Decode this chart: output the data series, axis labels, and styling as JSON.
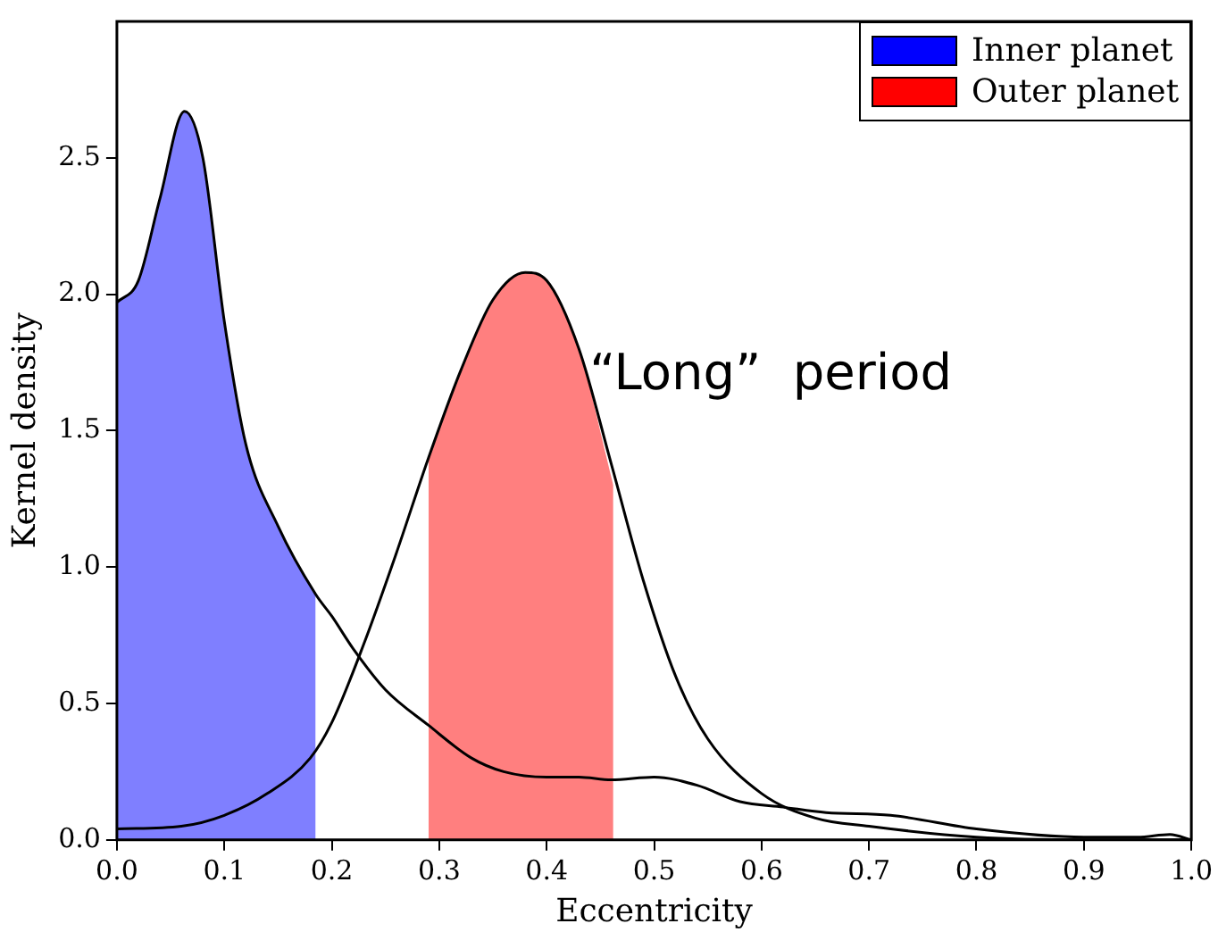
{
  "chart_data": {
    "type": "line",
    "xlabel": "Eccentricity",
    "ylabel": "Kernel density",
    "xlim": [
      0,
      1
    ],
    "ylim": [
      0,
      3
    ],
    "xticks": [
      {
        "value": 0,
        "label": "0.0"
      },
      0.1,
      0.2,
      0.3,
      0.4,
      0.5,
      0.6,
      0.7,
      0.8,
      0.9,
      {
        "value": 1,
        "label": "1.0"
      }
    ],
    "yticks": [
      {
        "value": 0,
        "label": "0.0"
      },
      0.5,
      {
        "value": 1,
        "label": "1.0"
      },
      1.5,
      {
        "value": 2,
        "label": "2.0"
      },
      2.5
    ],
    "grid": false,
    "legend": "top right",
    "marker": "none",
    "annotations": [
      {
        "text": "“Long”  period",
        "x": 0.44,
        "y": 1.7
      }
    ],
    "series": [
      {
        "name": "Inner planet",
        "type": "area",
        "color": "#0000ff",
        "x": [
          0,
          0.02,
          0.04,
          0.063,
          0.08,
          0.1,
          0.12,
          0.15,
          0.185
        ],
        "values": [
          1.97,
          2.05,
          2.35,
          2.67,
          2.5,
          1.9,
          1.45,
          1.15,
          0.9
        ]
      },
      {
        "name": "Outer planet",
        "type": "area",
        "color": "#ff0000",
        "x": [
          0.29,
          0.32,
          0.35,
          0.38,
          0.4,
          0.43,
          0.462
        ],
        "values": [
          1.4,
          1.72,
          1.98,
          2.08,
          2.05,
          1.8,
          1.3
        ]
      },
      {
        "type": "line",
        "color": "#000000",
        "x": [
          0,
          0.02,
          0.04,
          0.063,
          0.08,
          0.1,
          0.12,
          0.15,
          0.185,
          0.2,
          0.22,
          0.25,
          0.29,
          0.33,
          0.36,
          0.4,
          0.43,
          0.46,
          0.5,
          0.54,
          0.58,
          0.62,
          0.66,
          0.72,
          0.8,
          0.9,
          0.95,
          0.98,
          1
        ],
        "values": [
          1.97,
          2.05,
          2.35,
          2.67,
          2.5,
          1.9,
          1.45,
          1.15,
          0.9,
          0.82,
          0.7,
          0.55,
          0.42,
          0.3,
          0.25,
          0.23,
          0.23,
          0.22,
          0.23,
          0.2,
          0.14,
          0.12,
          0.1,
          0.09,
          0.04,
          0.01,
          0.01,
          0.02,
          0
        ]
      },
      {
        "type": "line",
        "color": "#000000",
        "x": [
          0,
          0.06,
          0.1,
          0.14,
          0.18,
          0.2,
          0.23,
          0.26,
          0.29,
          0.32,
          0.35,
          0.38,
          0.4,
          0.43,
          0.46,
          0.49,
          0.52,
          0.55,
          0.6,
          0.65,
          0.7,
          0.8,
          0.9,
          1
        ],
        "values": [
          0.04,
          0.05,
          0.09,
          0.17,
          0.3,
          0.43,
          0.72,
          1.05,
          1.4,
          1.72,
          1.98,
          2.08,
          2.05,
          1.8,
          1.38,
          0.95,
          0.6,
          0.37,
          0.17,
          0.08,
          0.05,
          0.01,
          0,
          0
        ]
      }
    ]
  }
}
